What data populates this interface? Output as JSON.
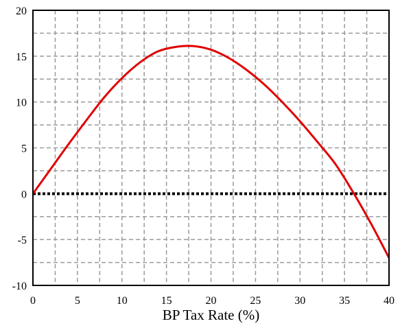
{
  "chart_data": {
    "type": "line",
    "xlabel": "BP Tax Rate (%)",
    "ylabel": "",
    "xlim": [
      0,
      40
    ],
    "ylim": [
      -10,
      20
    ],
    "x_ticks": [
      0,
      5,
      10,
      15,
      20,
      25,
      30,
      35,
      40
    ],
    "y_ticks": [
      20,
      15,
      10,
      5,
      0,
      -5,
      -10
    ],
    "x_tick_labels": [
      "0",
      "5",
      "10",
      "15",
      "20",
      "25",
      "30",
      "35",
      "40"
    ],
    "y_tick_labels": [
      "20",
      "15",
      "10",
      "5",
      "0",
      "-5",
      "-10"
    ],
    "grid": true,
    "grid_style": "dashed",
    "zero_line": {
      "y": 0,
      "style": "dotted",
      "color": "#000000"
    },
    "series": [
      {
        "color": "#e00000",
        "x": [
          0,
          2,
          4,
          6,
          8,
          10,
          12,
          14,
          16,
          18,
          20,
          22,
          24,
          26,
          28,
          30,
          32,
          34,
          36,
          38,
          40
        ],
        "y": [
          0,
          2.7,
          5.4,
          8.0,
          10.5,
          12.6,
          14.3,
          15.5,
          16.0,
          16.1,
          15.7,
          14.8,
          13.5,
          11.9,
          10.0,
          7.9,
          5.6,
          3.2,
          0.1,
          -3.3,
          -7.0
        ]
      }
    ]
  }
}
